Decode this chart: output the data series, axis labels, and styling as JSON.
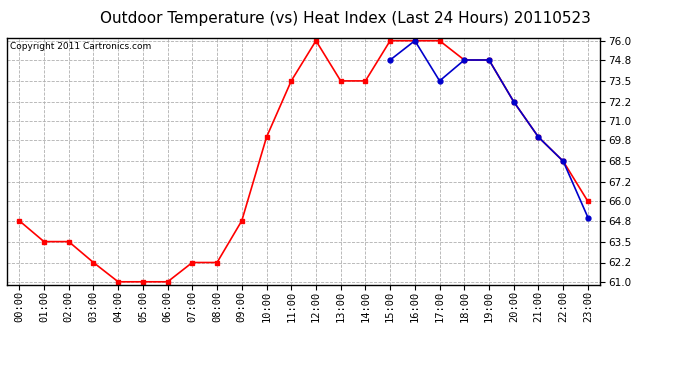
{
  "title": "Outdoor Temperature (vs) Heat Index (Last 24 Hours) 20110523",
  "copyright": "Copyright 2011 Cartronics.com",
  "x_labels": [
    "00:00",
    "01:00",
    "02:00",
    "03:00",
    "04:00",
    "05:00",
    "06:00",
    "07:00",
    "08:00",
    "09:00",
    "10:00",
    "11:00",
    "12:00",
    "13:00",
    "14:00",
    "15:00",
    "16:00",
    "17:00",
    "18:00",
    "19:00",
    "20:00",
    "21:00",
    "22:00",
    "23:00"
  ],
  "temp_y": [
    64.8,
    63.5,
    63.5,
    62.2,
    61.0,
    61.0,
    61.0,
    62.2,
    62.2,
    64.8,
    70.0,
    73.5,
    76.0,
    73.5,
    73.5,
    76.0,
    76.0,
    76.0,
    74.8,
    74.8,
    72.2,
    70.0,
    68.5,
    66.0
  ],
  "heat_y": [
    null,
    null,
    null,
    null,
    null,
    null,
    null,
    null,
    null,
    null,
    null,
    null,
    null,
    null,
    null,
    74.8,
    76.0,
    73.5,
    74.8,
    74.8,
    72.2,
    70.0,
    68.5,
    65.0
  ],
  "temp_color": "#ff0000",
  "heat_color": "#0000cc",
  "bg_color": "#ffffff",
  "plot_bg_color": "#ffffff",
  "grid_color": "#b0b0b0",
  "ylim_min": 61.0,
  "ylim_max": 76.0,
  "yticks": [
    61.0,
    62.2,
    63.5,
    64.8,
    66.0,
    67.2,
    68.5,
    69.8,
    71.0,
    72.2,
    73.5,
    74.8,
    76.0
  ],
  "title_fontsize": 11,
  "copyright_fontsize": 6.5,
  "tick_fontsize": 7.5,
  "marker_size": 3.5
}
